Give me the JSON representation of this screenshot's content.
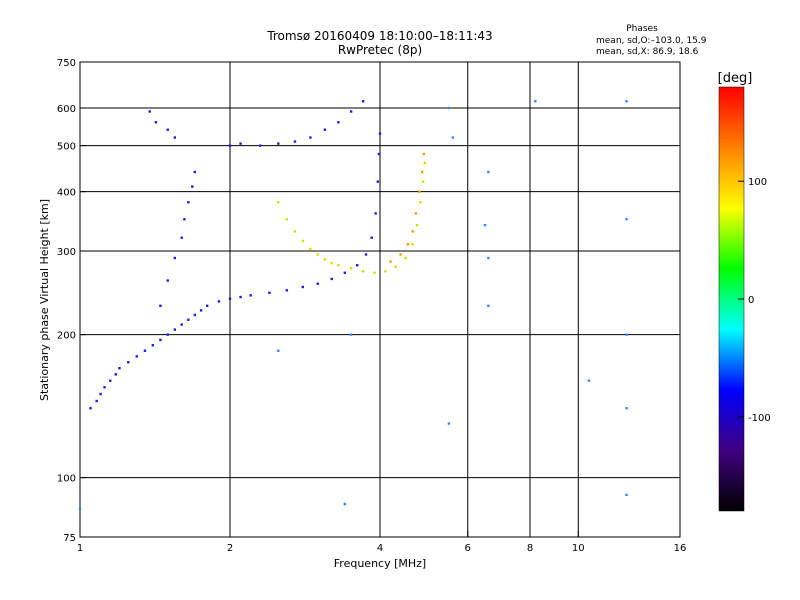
{
  "chart_data": {
    "type": "scatter",
    "title": "Tromsø 20160409 18:10:00–18:11:43",
    "subtitle": "RwPretec (8p)",
    "xlabel": "Frequency [MHz]",
    "ylabel": "Stationary phase Virtual Height [km]",
    "x_scale": "log",
    "y_scale": "log",
    "xlim": [
      1,
      16
    ],
    "ylim": [
      75,
      750
    ],
    "x_ticks": [
      1,
      2,
      4,
      6,
      8,
      10,
      16
    ],
    "y_ticks": [
      75,
      100,
      200,
      300,
      400,
      500,
      600,
      750
    ],
    "x_grid": [
      2,
      4,
      6,
      8,
      10
    ],
    "y_grid": [
      100,
      200,
      300,
      400,
      500,
      600
    ],
    "grid": true,
    "stats": {
      "heading": "Phases",
      "line_o": "mean, sd,O:–103.0, 15.9",
      "line_x": "mean, sd,X:  86.9, 18.6"
    },
    "colorbar": {
      "label": "[deg]",
      "range": [
        -180,
        180
      ],
      "ticks": [
        100,
        0,
        -100
      ],
      "colors": [
        "#ff0000",
        "#ff8000",
        "#ffff00",
        "#00ff00",
        "#00ffff",
        "#0000ff",
        "#400080",
        "#000000"
      ]
    },
    "series": [
      {
        "role": "O-mode F-layer trace (blue)",
        "color": "#1a20e0",
        "points": [
          [
            1.05,
            140
          ],
          [
            1.08,
            145
          ],
          [
            1.1,
            150
          ],
          [
            1.12,
            155
          ],
          [
            1.15,
            160
          ],
          [
            1.18,
            165
          ],
          [
            1.2,
            170
          ],
          [
            1.25,
            175
          ],
          [
            1.3,
            180
          ],
          [
            1.35,
            185
          ],
          [
            1.4,
            190
          ],
          [
            1.45,
            195
          ],
          [
            1.5,
            200
          ],
          [
            1.55,
            205
          ],
          [
            1.6,
            210
          ],
          [
            1.65,
            215
          ],
          [
            1.7,
            220
          ],
          [
            1.75,
            225
          ],
          [
            1.8,
            230
          ],
          [
            1.9,
            235
          ],
          [
            2.0,
            238
          ],
          [
            2.1,
            240
          ],
          [
            2.2,
            242
          ],
          [
            2.4,
            245
          ],
          [
            2.6,
            248
          ],
          [
            2.8,
            252
          ],
          [
            3.0,
            256
          ],
          [
            3.2,
            262
          ],
          [
            3.4,
            270
          ],
          [
            3.6,
            280
          ],
          [
            3.75,
            295
          ],
          [
            3.85,
            320
          ],
          [
            3.92,
            360
          ],
          [
            3.96,
            420
          ],
          [
            3.98,
            480
          ],
          [
            4.0,
            530
          ],
          [
            1.45,
            230
          ],
          [
            1.5,
            260
          ],
          [
            1.55,
            290
          ],
          [
            1.6,
            320
          ],
          [
            1.62,
            350
          ],
          [
            1.65,
            380
          ],
          [
            1.68,
            410
          ],
          [
            1.7,
            440
          ],
          [
            2.0,
            500
          ],
          [
            2.1,
            505
          ],
          [
            2.3,
            500
          ],
          [
            2.5,
            505
          ],
          [
            2.7,
            510
          ],
          [
            2.9,
            520
          ],
          [
            3.1,
            540
          ],
          [
            3.3,
            560
          ],
          [
            3.5,
            590
          ],
          [
            3.7,
            620
          ],
          [
            1.38,
            590
          ],
          [
            1.42,
            560
          ],
          [
            1.5,
            540
          ],
          [
            1.55,
            520
          ]
        ]
      },
      {
        "role": "X-mode F-layer trace (yellow-green)",
        "color": "#c8e800",
        "points": [
          [
            2.5,
            380
          ],
          [
            2.6,
            350
          ],
          [
            2.7,
            330
          ],
          [
            2.8,
            315
          ],
          [
            2.9,
            303
          ],
          [
            3.0,
            295
          ],
          [
            3.1,
            288
          ],
          [
            3.2,
            283
          ],
          [
            3.3,
            280
          ],
          [
            3.5,
            276
          ],
          [
            3.7,
            272
          ],
          [
            3.9,
            270
          ],
          [
            4.1,
            272
          ],
          [
            4.3,
            278
          ],
          [
            4.5,
            290
          ],
          [
            4.65,
            310
          ],
          [
            4.75,
            340
          ],
          [
            4.82,
            380
          ],
          [
            4.88,
            420
          ],
          [
            4.92,
            460
          ]
        ]
      },
      {
        "role": "X-mode trace (orange)",
        "color": "#ff9a00",
        "points": [
          [
            4.2,
            285
          ],
          [
            4.4,
            295
          ],
          [
            4.55,
            310
          ],
          [
            4.65,
            330
          ],
          [
            4.72,
            360
          ],
          [
            4.8,
            400
          ],
          [
            4.86,
            440
          ],
          [
            4.9,
            480
          ]
        ]
      },
      {
        "role": "scattered points",
        "color": "#2e8bff",
        "points": [
          [
            5.5,
            600
          ],
          [
            5.6,
            520
          ],
          [
            6.5,
            340
          ],
          [
            6.6,
            230
          ],
          [
            8.2,
            620
          ],
          [
            12.5,
            620
          ],
          [
            12.5,
            350
          ],
          [
            12.5,
            200
          ],
          [
            12.5,
            140
          ],
          [
            12.5,
            92
          ],
          [
            6.6,
            440
          ],
          [
            6.6,
            290
          ],
          [
            5.5,
            130
          ],
          [
            3.4,
            88
          ],
          [
            1.0,
            86
          ],
          [
            2.5,
            185
          ],
          [
            3.5,
            200
          ],
          [
            10.5,
            160
          ]
        ]
      }
    ]
  }
}
